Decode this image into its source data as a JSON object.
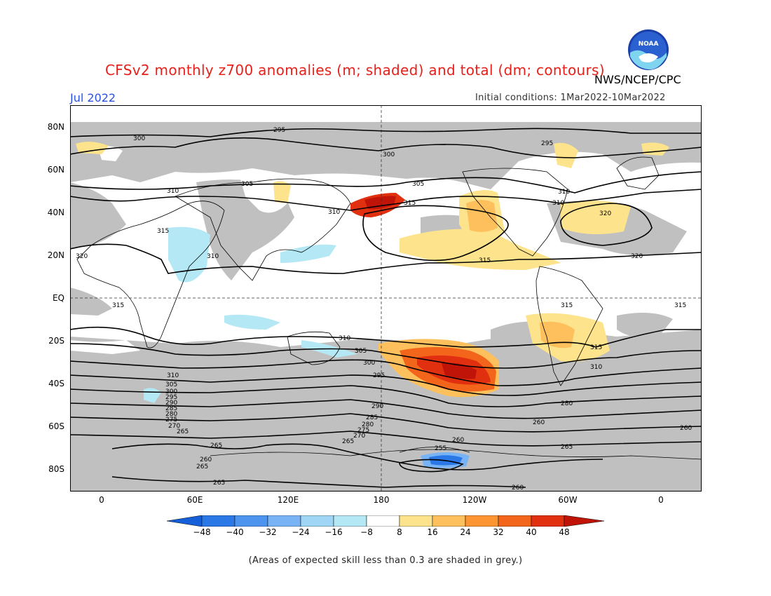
{
  "header": {
    "title": "CFSv2 monthly z700 anomalies (m; shaded) and total (dm; contours)",
    "agency": "NWS/NCEP/CPC",
    "month": "Jul 2022",
    "initial_conditions": "Initial conditions: 1Mar2022-10Mar2022",
    "logo_text": "NOAA"
  },
  "map": {
    "lat_labels": [
      "80N",
      "60N",
      "40N",
      "20N",
      "EQ",
      "20S",
      "40S",
      "60S",
      "80S"
    ],
    "lon_labels": [
      "0",
      "60E",
      "120E",
      "180",
      "120W",
      "60W",
      "0"
    ],
    "contour_labels": [
      "295",
      "300",
      "300",
      "295",
      "305",
      "310",
      "305",
      "310",
      "315",
      "315",
      "310",
      "315",
      "310",
      "320",
      "310",
      "320",
      "320",
      "315",
      "315",
      "315",
      "315",
      "310",
      "310",
      "305",
      "300",
      "295",
      "290",
      "285",
      "280",
      "275",
      "270",
      "265",
      "260",
      "255",
      "260",
      "265",
      "260",
      "265",
      "310",
      "305",
      "300",
      "295",
      "290",
      "285",
      "280",
      "275",
      "270",
      "265",
      "260",
      "280",
      "265",
      "260",
      "265"
    ],
    "anomaly_colors": {
      "neg48": "#1560d8",
      "neg40": "#2a78e6",
      "neg32": "#4d94ef",
      "neg24": "#78b4f5",
      "neg16": "#b4e8f5",
      "neutral": "#ffffff",
      "pos8": "#fde48c",
      "pos16": "#fdc05c",
      "pos24": "#fd9632",
      "pos32": "#f2651a",
      "pos40": "#e0300f",
      "pos48": "#c01408",
      "low_skill": "#c0c0c0"
    }
  },
  "colorbar": {
    "labels": [
      "−48",
      "−40",
      "−32",
      "−24",
      "−16",
      "−8",
      "8",
      "16",
      "24",
      "32",
      "40",
      "48"
    ]
  },
  "footnote": "(Areas of expected skill less than 0.3 are shaded in grey.)"
}
